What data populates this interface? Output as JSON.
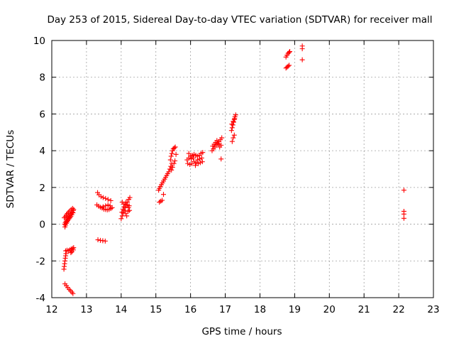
{
  "chart_data": {
    "type": "scatter",
    "title": "Day 253 of 2015, Sidereal Day-to-day VTEC variation (SDTVAR) for receiver mall",
    "xlabel": "GPS time / hours",
    "ylabel": "SDTVAR / TECUs",
    "xlim": [
      12,
      23
    ],
    "ylim": [
      -4,
      10
    ],
    "x_ticks": [
      12,
      13,
      14,
      15,
      16,
      17,
      18,
      19,
      20,
      21,
      22,
      23
    ],
    "y_ticks": [
      -4,
      -2,
      0,
      2,
      4,
      6,
      8,
      10
    ],
    "x_tick_labels": [
      "12",
      "13",
      "14",
      "15",
      "16",
      "17",
      "18",
      "19",
      "20",
      "21",
      "22",
      "23"
    ],
    "y_tick_labels": [
      "-4",
      "-2",
      "0",
      "2",
      "4",
      "6",
      "8",
      "10"
    ],
    "grid": true,
    "marker": "plus",
    "color": "#ff0000",
    "series": [
      {
        "name": "SDTVAR",
        "points": [
          [
            12.37,
            0.0
          ],
          [
            12.39,
            0.08
          ],
          [
            12.41,
            0.15
          ],
          [
            12.43,
            0.22
          ],
          [
            12.45,
            0.28
          ],
          [
            12.47,
            0.35
          ],
          [
            12.5,
            0.42
          ],
          [
            12.53,
            0.5
          ],
          [
            12.56,
            0.58
          ],
          [
            12.59,
            0.66
          ],
          [
            12.62,
            0.75
          ],
          [
            12.38,
            -0.15
          ],
          [
            12.4,
            -0.05
          ],
          [
            12.42,
            0.05
          ],
          [
            12.44,
            0.12
          ],
          [
            12.46,
            0.2
          ],
          [
            12.49,
            0.28
          ],
          [
            12.52,
            0.35
          ],
          [
            12.55,
            0.42
          ],
          [
            12.58,
            0.52
          ],
          [
            12.61,
            0.62
          ],
          [
            12.63,
            0.8
          ],
          [
            12.36,
            0.35
          ],
          [
            12.39,
            0.42
          ],
          [
            12.42,
            0.5
          ],
          [
            12.45,
            0.58
          ],
          [
            12.48,
            0.65
          ],
          [
            12.52,
            0.72
          ],
          [
            12.56,
            0.8
          ],
          [
            12.6,
            0.86
          ],
          [
            12.35,
            -2.45
          ],
          [
            12.36,
            -2.3
          ],
          [
            12.37,
            -2.15
          ],
          [
            12.38,
            -2.0
          ],
          [
            12.39,
            -1.85
          ],
          [
            12.4,
            -1.72
          ],
          [
            12.41,
            -1.6
          ],
          [
            12.4,
            -1.45
          ],
          [
            12.44,
            -1.42
          ],
          [
            12.48,
            -1.45
          ],
          [
            12.52,
            -1.4
          ],
          [
            12.56,
            -1.35
          ],
          [
            12.6,
            -1.32
          ],
          [
            12.63,
            -1.28
          ],
          [
            12.55,
            -1.55
          ],
          [
            12.58,
            -1.5
          ],
          [
            12.62,
            -1.4
          ],
          [
            12.38,
            -3.25
          ],
          [
            12.42,
            -3.35
          ],
          [
            12.46,
            -3.45
          ],
          [
            12.5,
            -3.55
          ],
          [
            12.54,
            -3.62
          ],
          [
            12.58,
            -3.7
          ],
          [
            12.61,
            -3.78
          ],
          [
            13.32,
            1.72
          ],
          [
            13.36,
            1.6
          ],
          [
            13.42,
            1.5
          ],
          [
            13.48,
            1.45
          ],
          [
            13.55,
            1.4
          ],
          [
            13.62,
            1.35
          ],
          [
            13.7,
            1.28
          ],
          [
            13.3,
            1.05
          ],
          [
            13.35,
            0.98
          ],
          [
            13.4,
            0.92
          ],
          [
            13.45,
            0.88
          ],
          [
            13.5,
            0.82
          ],
          [
            13.55,
            0.8
          ],
          [
            13.6,
            0.78
          ],
          [
            13.65,
            0.8
          ],
          [
            13.7,
            0.85
          ],
          [
            13.74,
            0.9
          ],
          [
            13.48,
            0.95
          ],
          [
            13.55,
            1.0
          ],
          [
            13.62,
            1.05
          ],
          [
            13.68,
            1.0
          ],
          [
            13.33,
            -0.85
          ],
          [
            13.4,
            -0.88
          ],
          [
            13.47,
            -0.9
          ],
          [
            13.54,
            -0.92
          ],
          [
            14.0,
            0.3
          ],
          [
            14.03,
            0.45
          ],
          [
            14.06,
            0.6
          ],
          [
            14.09,
            0.75
          ],
          [
            14.12,
            0.9
          ],
          [
            14.15,
            1.05
          ],
          [
            14.18,
            1.2
          ],
          [
            14.22,
            1.35
          ],
          [
            14.25,
            1.45
          ],
          [
            14.02,
            0.65
          ],
          [
            14.05,
            0.8
          ],
          [
            14.08,
            0.95
          ],
          [
            14.11,
            1.1
          ],
          [
            14.14,
            1.2
          ],
          [
            14.18,
            1.05
          ],
          [
            14.21,
            0.9
          ],
          [
            14.24,
            0.75
          ],
          [
            14.03,
            1.2
          ],
          [
            14.07,
            1.1
          ],
          [
            14.12,
            0.6
          ],
          [
            14.16,
            0.45
          ],
          [
            14.2,
            0.7
          ],
          [
            14.23,
            1.0
          ],
          [
            15.08,
            1.85
          ],
          [
            15.1,
            1.95
          ],
          [
            15.13,
            2.05
          ],
          [
            15.16,
            2.15
          ],
          [
            15.19,
            2.25
          ],
          [
            15.22,
            2.35
          ],
          [
            15.25,
            2.45
          ],
          [
            15.28,
            2.55
          ],
          [
            15.31,
            2.65
          ],
          [
            15.34,
            2.75
          ],
          [
            15.37,
            2.85
          ],
          [
            15.4,
            3.0
          ],
          [
            15.43,
            3.15
          ],
          [
            15.46,
            3.3
          ],
          [
            15.1,
            1.2
          ],
          [
            15.14,
            1.25
          ],
          [
            15.18,
            1.3
          ],
          [
            15.22,
            1.62
          ],
          [
            15.42,
            3.5
          ],
          [
            15.44,
            3.7
          ],
          [
            15.46,
            3.85
          ],
          [
            15.48,
            4.0
          ],
          [
            15.5,
            4.1
          ],
          [
            15.53,
            4.15
          ],
          [
            15.56,
            4.2
          ],
          [
            15.45,
            2.95
          ],
          [
            15.48,
            3.1
          ],
          [
            15.52,
            3.3
          ],
          [
            15.55,
            3.45
          ],
          [
            15.58,
            3.8
          ],
          [
            15.9,
            3.5
          ],
          [
            15.95,
            3.6
          ],
          [
            16.0,
            3.7
          ],
          [
            16.05,
            3.75
          ],
          [
            16.1,
            3.8
          ],
          [
            16.15,
            3.75
          ],
          [
            16.2,
            3.7
          ],
          [
            16.25,
            3.75
          ],
          [
            16.3,
            3.85
          ],
          [
            16.35,
            3.9
          ],
          [
            15.92,
            3.3
          ],
          [
            15.98,
            3.25
          ],
          [
            16.04,
            3.3
          ],
          [
            16.1,
            3.4
          ],
          [
            16.16,
            3.35
          ],
          [
            16.22,
            3.3
          ],
          [
            16.28,
            3.35
          ],
          [
            16.34,
            3.4
          ],
          [
            15.95,
            3.85
          ],
          [
            16.02,
            3.55
          ],
          [
            16.08,
            3.6
          ],
          [
            16.14,
            3.2
          ],
          [
            16.2,
            3.5
          ],
          [
            16.26,
            3.55
          ],
          [
            16.32,
            3.6
          ],
          [
            16.62,
            4.0
          ],
          [
            16.66,
            4.1
          ],
          [
            16.7,
            4.2
          ],
          [
            16.74,
            4.3
          ],
          [
            16.78,
            4.4
          ],
          [
            16.82,
            4.5
          ],
          [
            16.86,
            4.6
          ],
          [
            16.9,
            4.7
          ],
          [
            16.64,
            4.25
          ],
          [
            16.68,
            4.35
          ],
          [
            16.72,
            4.45
          ],
          [
            16.76,
            4.55
          ],
          [
            16.8,
            4.35
          ],
          [
            16.84,
            4.2
          ],
          [
            16.88,
            4.3
          ],
          [
            16.88,
            3.55
          ],
          [
            17.2,
            4.5
          ],
          [
            17.23,
            4.7
          ],
          [
            17.26,
            4.85
          ],
          [
            17.18,
            5.1
          ],
          [
            17.2,
            5.25
          ],
          [
            17.22,
            5.4
          ],
          [
            17.24,
            5.55
          ],
          [
            17.26,
            5.7
          ],
          [
            17.28,
            5.85
          ],
          [
            17.3,
            5.95
          ],
          [
            17.19,
            5.45
          ],
          [
            17.23,
            5.6
          ],
          [
            17.27,
            5.75
          ],
          [
            18.75,
            8.5
          ],
          [
            18.78,
            8.55
          ],
          [
            18.81,
            8.6
          ],
          [
            18.84,
            8.65
          ],
          [
            18.75,
            9.1
          ],
          [
            18.78,
            9.2
          ],
          [
            18.81,
            9.3
          ],
          [
            18.84,
            9.35
          ],
          [
            18.86,
            9.4
          ],
          [
            19.22,
            9.55
          ],
          [
            19.22,
            9.7
          ],
          [
            19.22,
            8.95
          ],
          [
            22.15,
            1.85
          ],
          [
            22.15,
            0.7
          ],
          [
            22.15,
            0.55
          ],
          [
            22.15,
            0.32
          ]
        ]
      }
    ]
  }
}
